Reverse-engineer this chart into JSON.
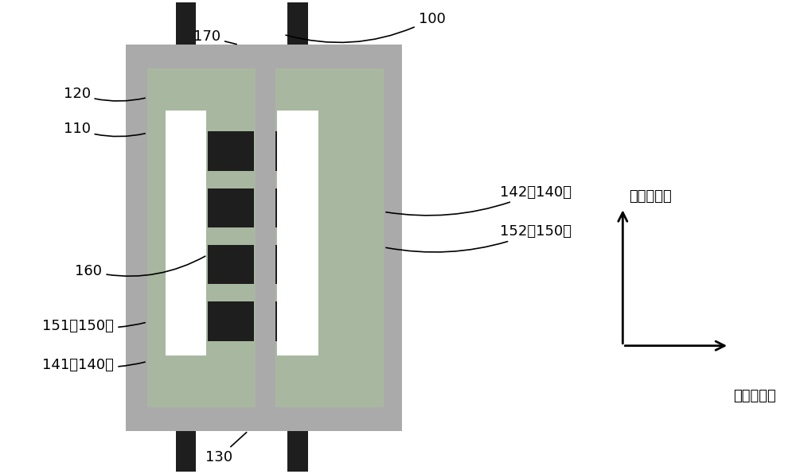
{
  "bg_color": "#ffffff",
  "chip_color": "#aaaaaa",
  "green_color": "#a8b8a0",
  "white_color": "#ffffff",
  "coil_color": "#1e1e1e",
  "pin_color": "#1e1e1e",
  "fig_w": 10.0,
  "fig_h": 5.96,
  "label_hard": "难磁化方向",
  "label_easy": "易磁化方向",
  "font_size_label": 13,
  "font_size_axis": 14,
  "font_size_arrow_label": 13
}
